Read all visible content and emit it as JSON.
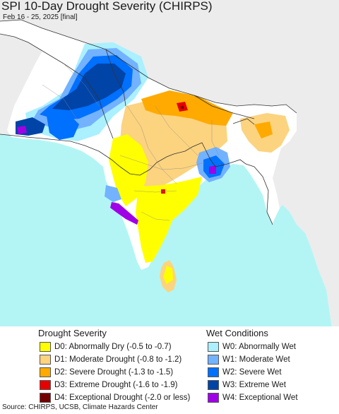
{
  "map": {
    "title": "SPI 10-Day Drought Severity (CHIRPS)",
    "subtitle": "Feb 16 - 25, 2025 [final]",
    "colors": {
      "ocean": "#b3f5f5",
      "land_outside": "#ececec",
      "land_normal": "#ffffff",
      "border": "#333333"
    }
  },
  "legend": {
    "drought": {
      "heading": "Drought Severity",
      "items": [
        {
          "code": "D0",
          "label": "D0: Abnormally Dry (-0.5 to -0.7)",
          "color": "#ffff00"
        },
        {
          "code": "D1",
          "label": "D1: Moderate Drought (-0.8 to -1.2)",
          "color": "#fcd37f"
        },
        {
          "code": "D2",
          "label": "D2: Severe Drought (-1.3 to -1.5)",
          "color": "#ffaa00"
        },
        {
          "code": "D3",
          "label": "D3: Extreme Drought (-1.6 to -1.9)",
          "color": "#e60000"
        },
        {
          "code": "D4",
          "label": "D4: Exceptional Drought (-2.0 or less)",
          "color": "#730000"
        }
      ]
    },
    "wet": {
      "heading": "Wet Conditions",
      "items": [
        {
          "code": "W0",
          "label": "W0: Abnormally Wet",
          "color": "#aaf0ff"
        },
        {
          "code": "W1",
          "label": "W1: Moderate Wet",
          "color": "#73b2ff"
        },
        {
          "code": "W2",
          "label": "W2: Severe Wet",
          "color": "#0070ff"
        },
        {
          "code": "W3",
          "label": "W3: Extreme Wet",
          "color": "#0044a8"
        },
        {
          "code": "W4",
          "label": "W4: Exceptional Wet",
          "color": "#a000e6"
        }
      ]
    }
  },
  "source": "Source: CHIRPS, UCSB, Climate Hazards Center"
}
